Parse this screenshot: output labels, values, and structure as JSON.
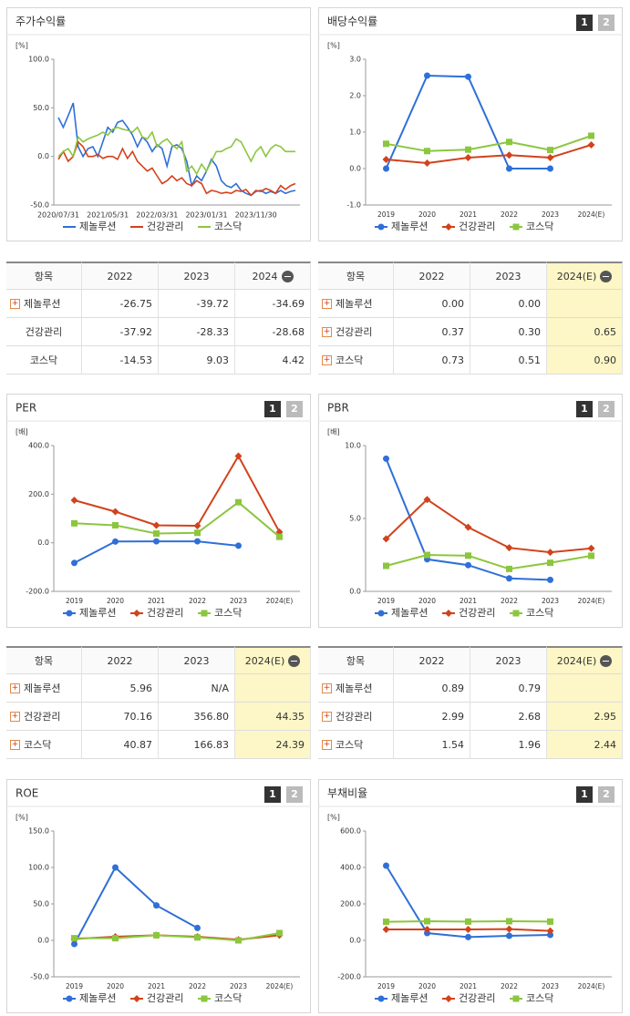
{
  "chart_data": [
    {
      "type": "line",
      "title": "주가수익률",
      "unit": "[%]",
      "categories": [
        "2020/07/31",
        null,
        null,
        null,
        null,
        null,
        null,
        null,
        null,
        null,
        "2021/05/31",
        null,
        null,
        null,
        null,
        null,
        null,
        null,
        null,
        null,
        "2022/03/31",
        null,
        null,
        null,
        null,
        null,
        null,
        null,
        null,
        null,
        "2023/01/31",
        null,
        null,
        null,
        null,
        null,
        null,
        null,
        null,
        null,
        "2023/11/30",
        null,
        null,
        null,
        null,
        null,
        null,
        null,
        null
      ],
      "series": [
        {
          "name": "제놀루션",
          "color": "#2f6fd8",
          "values": [
            40,
            30,
            42,
            55,
            10,
            0,
            8,
            10,
            0,
            15,
            30,
            25,
            35,
            37,
            30,
            22,
            10,
            20,
            15,
            5,
            12,
            8,
            -10,
            10,
            12,
            8,
            -5,
            -30,
            -20,
            -25,
            -15,
            -3,
            -10,
            -25,
            -30,
            -32,
            -28,
            -35,
            -38,
            -40,
            -36,
            -35,
            -38,
            -36,
            -38,
            -35,
            -38,
            -36,
            -35
          ]
        },
        {
          "name": "건강관리",
          "color": "#d2421c",
          "values": [
            -3,
            5,
            -5,
            0,
            15,
            10,
            0,
            0,
            2,
            -2,
            0,
            0,
            -3,
            8,
            -2,
            5,
            -5,
            -10,
            -15,
            -12,
            -20,
            -28,
            -25,
            -20,
            -25,
            -22,
            -28,
            -30,
            -25,
            -28,
            -38,
            -35,
            -36,
            -38,
            -37,
            -38,
            -35,
            -36,
            -34,
            -40,
            -35,
            -36,
            -33,
            -35,
            -38,
            -30,
            -34,
            -30,
            -28
          ]
        },
        {
          "name": "코스닥",
          "color": "#8cc63f",
          "values": [
            0,
            5,
            8,
            0,
            20,
            15,
            18,
            20,
            22,
            25,
            22,
            28,
            30,
            28,
            27,
            25,
            30,
            20,
            18,
            25,
            10,
            15,
            18,
            12,
            8,
            15,
            -15,
            -10,
            -18,
            -8,
            -15,
            -5,
            5,
            5,
            8,
            10,
            18,
            15,
            5,
            -5,
            5,
            10,
            0,
            8,
            12,
            10,
            5,
            5,
            5
          ]
        }
      ],
      "ylim": [
        -50,
        100
      ],
      "yticks": [
        {
          "value": -50,
          "label": "-50.0"
        },
        {
          "value": 0,
          "label": "0.0"
        },
        {
          "value": 50,
          "label": "50.0"
        },
        {
          "value": 100,
          "label": "100.0"
        }
      ]
    },
    {
      "type": "line",
      "title": "배당수익률",
      "tabs": [
        "1",
        "2"
      ],
      "unit": "[%]",
      "categories": [
        "2019",
        "2020",
        "2021",
        "2022",
        "2023",
        "2024(E)"
      ],
      "series": [
        {
          "name": "제놀루션",
          "color": "#2f6fd8",
          "marker": "circle",
          "values": [
            0,
            2.55,
            2.52,
            0,
            0,
            null
          ]
        },
        {
          "name": "건강관리",
          "color": "#d2421c",
          "marker": "diamond",
          "values": [
            0.25,
            0.15,
            0.3,
            0.37,
            0.3,
            0.65
          ]
        },
        {
          "name": "코스닥",
          "color": "#8cc63f",
          "marker": "square",
          "values": [
            0.68,
            0.48,
            0.52,
            0.73,
            0.51,
            0.9
          ]
        }
      ],
      "ylim": [
        -1,
        3
      ],
      "yticks": [
        {
          "value": -1,
          "label": "-1.0"
        },
        {
          "value": 0,
          "label": "0.0"
        },
        {
          "value": 1,
          "label": "1.0"
        },
        {
          "value": 2,
          "label": "2.0"
        },
        {
          "value": 3,
          "label": "3.0"
        }
      ]
    },
    {
      "type": "line",
      "title": "PER",
      "tabs": [
        "1",
        "2"
      ],
      "unit": "[배]",
      "categories": [
        "2019",
        "2020",
        "2021",
        "2022",
        "2023",
        "2024(E)"
      ],
      "series": [
        {
          "name": "제놀루션",
          "color": "#2f6fd8",
          "marker": "circle",
          "values": [
            -83,
            5,
            6,
            5.96,
            -12,
            null
          ]
        },
        {
          "name": "건강관리",
          "color": "#d2421c",
          "marker": "diamond",
          "values": [
            175,
            128,
            72,
            70.16,
            356.8,
            44.35
          ]
        },
        {
          "name": "코스닥",
          "color": "#8cc63f",
          "marker": "square",
          "values": [
            80,
            72,
            38,
            40.87,
            166.83,
            24.39
          ]
        }
      ],
      "ylim": [
        -200,
        400
      ],
      "yticks": [
        {
          "value": -200,
          "label": "-200.0"
        },
        {
          "value": 0,
          "label": "0.0"
        },
        {
          "value": 200,
          "label": "200.0"
        },
        {
          "value": 400,
          "label": "400.0"
        }
      ]
    },
    {
      "type": "line",
      "title": "PBR",
      "tabs": [
        "1",
        "2"
      ],
      "unit": "[배]",
      "categories": [
        "2019",
        "2020",
        "2021",
        "2022",
        "2023",
        "2024(E)"
      ],
      "series": [
        {
          "name": "제놀루션",
          "color": "#2f6fd8",
          "marker": "circle",
          "values": [
            9.1,
            2.2,
            1.8,
            0.89,
            0.79,
            null
          ]
        },
        {
          "name": "건강관리",
          "color": "#d2421c",
          "marker": "diamond",
          "values": [
            3.6,
            6.3,
            4.4,
            2.99,
            2.68,
            2.95
          ]
        },
        {
          "name": "코스닥",
          "color": "#8cc63f",
          "marker": "square",
          "values": [
            1.75,
            2.5,
            2.45,
            1.54,
            1.96,
            2.44
          ]
        }
      ],
      "ylim": [
        0,
        10
      ],
      "yticks": [
        {
          "value": 0,
          "label": "0.0"
        },
        {
          "value": 5,
          "label": "5.0"
        },
        {
          "value": 10,
          "label": "10.0"
        }
      ]
    },
    {
      "type": "line",
      "title": "ROE",
      "tabs": [
        "1",
        "2"
      ],
      "unit": "[%]",
      "categories": [
        "2019",
        "2020",
        "2021",
        "2022",
        "2023",
        "2024(E)"
      ],
      "series": [
        {
          "name": "제놀루션",
          "color": "#2f6fd8",
          "marker": "circle",
          "values": [
            -5,
            100,
            48,
            17,
            null,
            null
          ]
        },
        {
          "name": "건강관리",
          "color": "#d2421c",
          "marker": "diamond",
          "values": [
            2,
            5,
            7,
            5,
            1,
            7
          ]
        },
        {
          "name": "코스닥",
          "color": "#8cc63f",
          "marker": "square",
          "values": [
            3,
            3,
            7,
            4,
            0,
            10
          ]
        }
      ],
      "ylim": [
        -50,
        150
      ],
      "yticks": [
        {
          "value": -50,
          "label": "-50.0"
        },
        {
          "value": 0,
          "label": "0.0"
        },
        {
          "value": 50,
          "label": "50.0"
        },
        {
          "value": 100,
          "label": "100.0"
        },
        {
          "value": 150,
          "label": "150.0"
        }
      ]
    },
    {
      "type": "line",
      "title": "부채비율",
      "tabs": [
        "1",
        "2"
      ],
      "unit": "[%]",
      "categories": [
        "2019",
        "2020",
        "2021",
        "2022",
        "2023",
        "2024(E)"
      ],
      "series": [
        {
          "name": "제놀루션",
          "color": "#2f6fd8",
          "marker": "circle",
          "values": [
            410,
            40,
            18,
            25,
            30,
            null
          ]
        },
        {
          "name": "건강관리",
          "color": "#d2421c",
          "marker": "diamond",
          "values": [
            60,
            60,
            60,
            62,
            52,
            null
          ]
        },
        {
          "name": "코스닥",
          "color": "#8cc63f",
          "marker": "square",
          "values": [
            102,
            105,
            103,
            105,
            103,
            null
          ]
        }
      ],
      "ylim": [
        -200,
        600
      ],
      "yticks": [
        {
          "value": -200,
          "label": "-200.0"
        },
        {
          "value": 0,
          "label": "0.0"
        },
        {
          "value": 200,
          "label": "200.0"
        },
        {
          "value": 400,
          "label": "400.0"
        },
        {
          "value": 600,
          "label": "600.0"
        }
      ]
    }
  ],
  "tables": [
    {
      "header": [
        "항목",
        "2022",
        "2023",
        "2024"
      ],
      "row_icons": [
        true,
        false,
        false
      ],
      "highlight_last": false,
      "rows": [
        [
          "제놀루션",
          "-26.75",
          "-39.72",
          "-34.69"
        ],
        [
          "건강관리",
          "-37.92",
          "-28.33",
          "-28.68"
        ],
        [
          "코스닥",
          "-14.53",
          "9.03",
          "4.42"
        ]
      ]
    },
    {
      "header": [
        "항목",
        "2022",
        "2023",
        "2024(E)"
      ],
      "row_icons": [
        true,
        true,
        true
      ],
      "highlight_last": true,
      "rows": [
        [
          "제놀루션",
          "0.00",
          "0.00",
          null
        ],
        [
          "건강관리",
          "0.37",
          "0.30",
          "0.65"
        ],
        [
          "코스닥",
          "0.73",
          "0.51",
          "0.90"
        ]
      ]
    },
    {
      "header": [
        "항목",
        "2022",
        "2023",
        "2024(E)"
      ],
      "row_icons": [
        true,
        true,
        true
      ],
      "highlight_last": true,
      "rows": [
        [
          "제놀루션",
          "5.96",
          "N/A",
          null
        ],
        [
          "건강관리",
          "70.16",
          "356.80",
          "44.35"
        ],
        [
          "코스닥",
          "40.87",
          "166.83",
          "24.39"
        ]
      ]
    },
    {
      "header": [
        "항목",
        "2022",
        "2023",
        "2024(E)"
      ],
      "row_icons": [
        true,
        true,
        true
      ],
      "highlight_last": true,
      "rows": [
        [
          "제놀루션",
          "0.89",
          "0.79",
          null
        ],
        [
          "건강관리",
          "2.99",
          "2.68",
          "2.95"
        ],
        [
          "코스닥",
          "1.54",
          "1.96",
          "2.44"
        ]
      ]
    }
  ]
}
